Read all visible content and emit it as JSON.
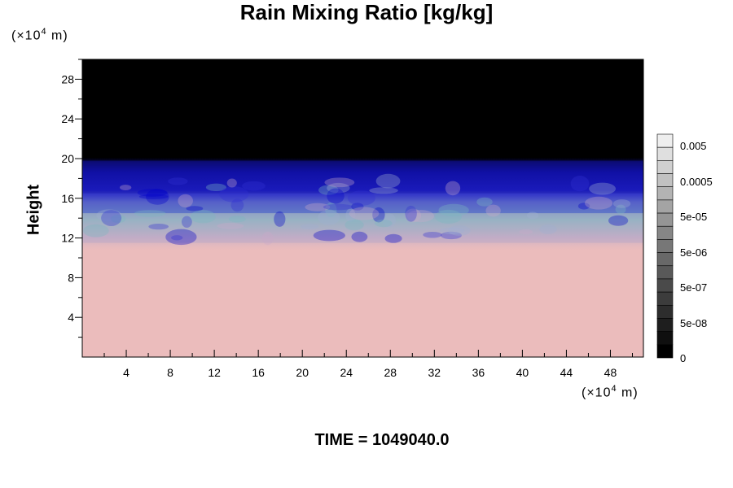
{
  "chart_data": {
    "type": "heatmap",
    "title": "Rain Mixing Ratio [kg/kg]",
    "ylabel": "Height",
    "xunit_prefix": "(×10",
    "xunit_exp": "4",
    "xunit_suffix": " m)",
    "yunit_prefix": "(×10",
    "yunit_exp": "4",
    "yunit_suffix": " m)",
    "footer": "TIME = 1049040.0",
    "xlim": [
      0,
      51
    ],
    "ylim": [
      0,
      30
    ],
    "x_ticks": [
      "4",
      "8",
      "12",
      "16",
      "20",
      "24",
      "28",
      "32",
      "36",
      "40",
      "44",
      "48"
    ],
    "y_ticks": [
      "4",
      "8",
      "12",
      "16",
      "20",
      "24",
      "28"
    ],
    "colorbar_labels": [
      "0.005",
      "0.0005",
      "5e-05",
      "5e-06",
      "5e-07",
      "5e-08",
      "0"
    ],
    "bands": [
      {
        "y_from": 0,
        "y_to": 11.5,
        "color": "#ecbcbc"
      },
      {
        "y_from": 11.5,
        "y_to": 14.5,
        "color": "#b8a6c4"
      },
      {
        "y_from": 14.5,
        "y_to": 16.5,
        "color": "#2828c8"
      },
      {
        "y_from": 16.5,
        "y_to": 19.8,
        "color": "#1010a0"
      },
      {
        "y_from": 19.8,
        "y_to": 30,
        "color": "#000000"
      }
    ]
  }
}
